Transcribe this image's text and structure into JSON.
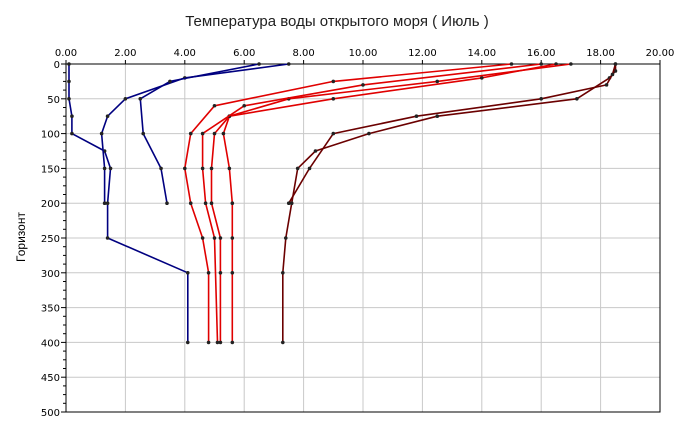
{
  "chart_data": {
    "type": "line",
    "title": "Температура воды открытого моря    ( Июль )",
    "xlabel": "",
    "ylabel": "Горизонт",
    "x_axis_position": "top",
    "y_inverted": true,
    "xlim": [
      0,
      20
    ],
    "ylim": [
      0,
      500
    ],
    "xticks": [
      "0.00",
      "2.00",
      "4.00",
      "6.00",
      "8.00",
      "10.00",
      "12.00",
      "14.00",
      "16.00",
      "18.00",
      "20.00"
    ],
    "yticks": [
      "0",
      "50",
      "100",
      "150",
      "200",
      "250",
      "300",
      "350",
      "400",
      "450",
      "500"
    ],
    "grid": true,
    "colors": {
      "background": "#ffffff",
      "grid": "#c8c8c8",
      "frame": "#000000",
      "marker": "#222222"
    },
    "series": [
      {
        "color": "#000080",
        "points": [
          [
            0.1,
            0
          ],
          [
            0.1,
            25
          ],
          [
            0.1,
            50
          ],
          [
            0.2,
            75
          ],
          [
            0.2,
            100
          ],
          [
            1.3,
            125
          ],
          [
            1.5,
            150
          ],
          [
            1.4,
            200
          ],
          [
            1.4,
            250
          ],
          [
            4.1,
            300
          ],
          [
            4.1,
            400
          ]
        ]
      },
      {
        "color": "#6b0000",
        "points": [
          [
            18.5,
            0
          ],
          [
            18.5,
            10
          ],
          [
            18.3,
            20
          ],
          [
            17.2,
            50
          ],
          [
            12.5,
            75
          ],
          [
            10.2,
            100
          ],
          [
            8.4,
            125
          ],
          [
            7.8,
            150
          ],
          [
            7.6,
            200
          ],
          [
            7.4,
            250
          ],
          [
            7.3,
            300
          ],
          [
            7.3,
            400
          ]
        ]
      },
      {
        "color": "#6b0000",
        "points": [
          [
            18.5,
            0
          ],
          [
            18.4,
            15
          ],
          [
            18.2,
            30
          ],
          [
            16.0,
            50
          ],
          [
            11.8,
            75
          ],
          [
            9.0,
            100
          ],
          [
            8.2,
            150
          ],
          [
            7.5,
            200
          ]
        ]
      },
      {
        "color": "#e00000",
        "points": [
          [
            16.5,
            0
          ],
          [
            14.0,
            20
          ],
          [
            9.0,
            50
          ],
          [
            5.5,
            75
          ],
          [
            5.0,
            100
          ],
          [
            4.9,
            150
          ],
          [
            4.9,
            200
          ],
          [
            5.2,
            250
          ],
          [
            5.2,
            300
          ],
          [
            5.2,
            400
          ]
        ]
      },
      {
        "color": "#e00000",
        "points": [
          [
            17.0,
            0
          ],
          [
            12.5,
            25
          ],
          [
            7.5,
            50
          ],
          [
            5.5,
            75
          ],
          [
            5.3,
            100
          ],
          [
            5.5,
            150
          ],
          [
            5.6,
            200
          ],
          [
            5.6,
            250
          ],
          [
            5.6,
            300
          ],
          [
            5.6,
            400
          ]
        ]
      },
      {
        "color": "#e00000",
        "points": [
          [
            16.0,
            0
          ],
          [
            10.0,
            30
          ],
          [
            6.0,
            60
          ],
          [
            4.6,
            100
          ],
          [
            4.6,
            150
          ],
          [
            4.7,
            200
          ],
          [
            5.0,
            250
          ],
          [
            5.1,
            400
          ]
        ]
      },
      {
        "color": "#e00000",
        "points": [
          [
            15.0,
            0
          ],
          [
            9.0,
            25
          ],
          [
            5.0,
            60
          ],
          [
            4.2,
            100
          ],
          [
            4.0,
            150
          ],
          [
            4.2,
            200
          ],
          [
            4.6,
            250
          ],
          [
            4.8,
            300
          ],
          [
            4.8,
            400
          ]
        ]
      },
      {
        "color": "#000080",
        "points": [
          [
            7.5,
            0
          ],
          [
            4.0,
            20
          ],
          [
            2.0,
            50
          ],
          [
            1.4,
            75
          ],
          [
            1.2,
            100
          ],
          [
            1.3,
            150
          ],
          [
            1.3,
            200
          ]
        ]
      },
      {
        "color": "#000080",
        "points": [
          [
            6.5,
            0
          ],
          [
            3.5,
            25
          ],
          [
            2.5,
            50
          ],
          [
            2.6,
            100
          ],
          [
            3.2,
            150
          ],
          [
            3.4,
            200
          ]
        ]
      }
    ]
  }
}
